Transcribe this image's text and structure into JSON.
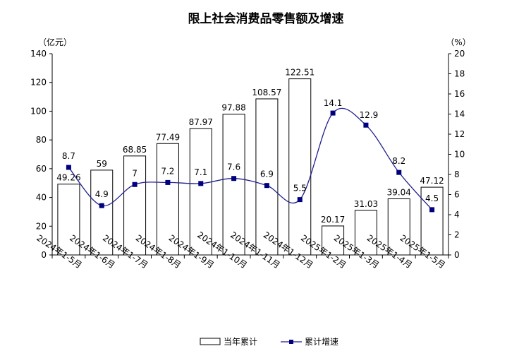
{
  "chart_data": {
    "type": "bar+line",
    "title": "限上社会消费品零售额及增速",
    "y_left_unit": "（亿元）",
    "y_right_unit": "（%）",
    "y_left_range": [
      0,
      140
    ],
    "y_left_ticks": [
      "0",
      "20",
      "40",
      "60",
      "80",
      "100",
      "120",
      "140"
    ],
    "y_right_range": [
      0,
      20
    ],
    "y_right_ticks": [
      "0",
      "2",
      "4",
      "6",
      "8",
      "10",
      "12",
      "14",
      "16",
      "18",
      "20"
    ],
    "categories": [
      "2024年1-5月",
      "2024年1-6月",
      "2024年1-7月",
      "2024年1-8月",
      "2024年1-9月",
      "2024年1-10月",
      "2024年1-11月",
      "2024年1-12月",
      "2025年1-2月",
      "2025年1-3月",
      "2025年1-4月",
      "2025年1-5月"
    ],
    "series": [
      {
        "name": "当年累计",
        "type": "bar",
        "axis": "left",
        "values": [
          49.26,
          59,
          68.85,
          77.49,
          87.97,
          97.88,
          108.57,
          122.51,
          20.17,
          31.03,
          39.04,
          47.12
        ],
        "labels": [
          "49.26",
          "59",
          "68.85",
          "77.49",
          "87.97",
          "97.88",
          "108.57",
          "122.51",
          "20.17",
          "31.03",
          "39.04",
          "47.12"
        ]
      },
      {
        "name": "累计增速",
        "type": "line",
        "axis": "right",
        "values": [
          8.7,
          4.9,
          7,
          7.2,
          7.1,
          7.6,
          6.9,
          5.5,
          14.1,
          12.9,
          8.2,
          4.5
        ],
        "labels": [
          "8.7",
          "4.9",
          "7",
          "7.2",
          "7.1",
          "7.6",
          "6.9",
          "5.5",
          "14.1",
          "12.9",
          "8.2",
          "4.5"
        ]
      }
    ],
    "legend_position": "bottom",
    "grid": false,
    "colors": {
      "bar_fill": "#ffffff",
      "bar_stroke": "#000000",
      "line": "#1f1f8f",
      "marker": "#00007f"
    }
  }
}
